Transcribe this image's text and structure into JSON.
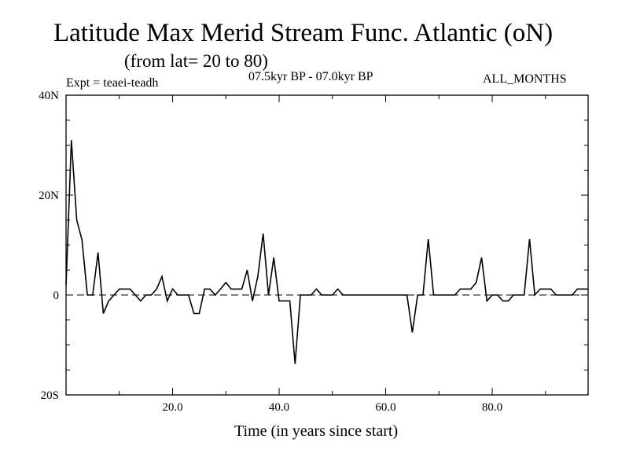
{
  "header": {
    "title": "Latitude Max Merid Stream Func. Atlantic (oN)",
    "subtitle": "(from lat= 20 to 80)",
    "experiment": "Expt = teaei-teadh",
    "period": "07.5kyr BP - 07.0kyr BP",
    "months": "ALL_MONTHS"
  },
  "chart_data": {
    "type": "line",
    "title": "Latitude Max Merid Stream Func. Atlantic (oN)",
    "subtitle": "(from lat= 20 to 80)",
    "xlabel": "Time (in years since start)",
    "ylabel": "",
    "xlim": [
      0,
      98
    ],
    "ylim": [
      -20,
      40
    ],
    "x_ticks": [
      20,
      40,
      60,
      80
    ],
    "x_tick_labels": [
      "20.0",
      "40.0",
      "60.0",
      "80.0"
    ],
    "y_ticks": [
      -20,
      0,
      20,
      40
    ],
    "y_tick_labels": [
      "20S",
      "0",
      "20N",
      "40N"
    ],
    "zero_line": "dashed",
    "series": [
      {
        "name": "Latitude Max Merid Stream Func.",
        "x": [
          0,
          1,
          2,
          3,
          4,
          5,
          6,
          7,
          8,
          9,
          10,
          11,
          12,
          13,
          14,
          15,
          16,
          17,
          18,
          19,
          20,
          21,
          22,
          23,
          24,
          25,
          26,
          27,
          28,
          29,
          30,
          31,
          32,
          33,
          34,
          35,
          36,
          37,
          38,
          39,
          40,
          41,
          42,
          43,
          44,
          45,
          46,
          47,
          48,
          49,
          50,
          51,
          52,
          53,
          54,
          55,
          56,
          57,
          58,
          59,
          60,
          61,
          62,
          63,
          64,
          65,
          66,
          67,
          68,
          69,
          70,
          71,
          72,
          73,
          74,
          75,
          76,
          77,
          78,
          79,
          80,
          81,
          82,
          83,
          84,
          85,
          86,
          87,
          88,
          89,
          90,
          91,
          92,
          93,
          94,
          95,
          96,
          97,
          98
        ],
        "values": [
          2,
          31,
          15,
          11,
          0,
          0,
          8.5,
          -3.7,
          -1.2,
          0,
          1.2,
          1.2,
          1.2,
          0,
          -1.2,
          0,
          0,
          1.2,
          3.7,
          -1.2,
          1.2,
          0,
          0,
          0,
          -3.7,
          -3.7,
          1.2,
          1.2,
          0,
          1.2,
          2.5,
          1.2,
          1.2,
          1.2,
          5,
          -1.2,
          3.7,
          12.3,
          0,
          7.5,
          -1.2,
          -1.2,
          -1.2,
          -13.8,
          0,
          0,
          0,
          1.2,
          0,
          0,
          0,
          1.2,
          0,
          0,
          0,
          0,
          0,
          0,
          0,
          0,
          0,
          0,
          0,
          0,
          0,
          -7.5,
          0,
          0,
          11.2,
          0,
          0,
          0,
          0,
          0,
          1.2,
          1.2,
          1.2,
          2.5,
          7.5,
          -1.2,
          0,
          0,
          -1.2,
          -1.2,
          0,
          0,
          0,
          11.2,
          0,
          1.2,
          1.2,
          1.2,
          0,
          0,
          0,
          0,
          1.2,
          1.2,
          1.2
        ]
      }
    ]
  }
}
